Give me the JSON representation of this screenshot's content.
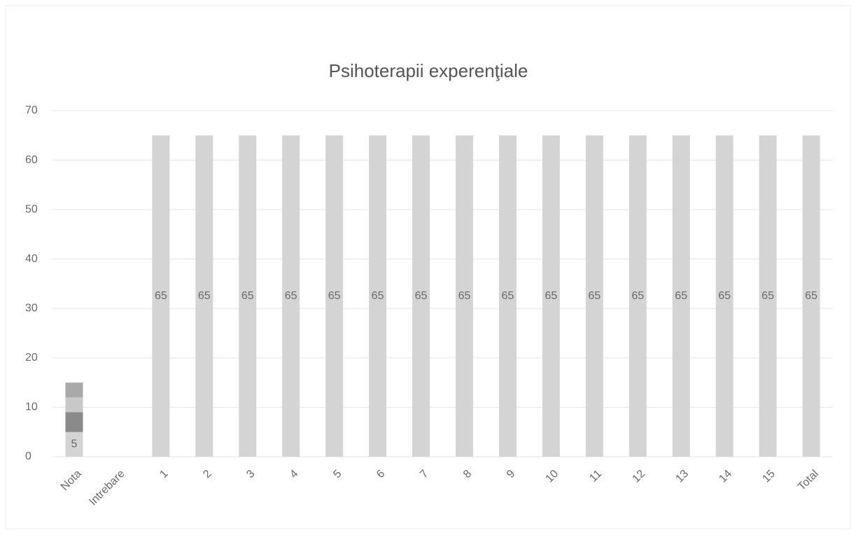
{
  "chart_data": {
    "type": "stacked_bar",
    "title": "Psihoterapii experenţiale",
    "categories": [
      "Nota",
      "Intrebare",
      "1",
      "2",
      "3",
      "4",
      "5",
      "6",
      "7",
      "8",
      "9",
      "10",
      "11",
      "12",
      "13",
      "14",
      "15",
      "Total"
    ],
    "series": [
      {
        "color": "#d4d4d4",
        "show_labels": true,
        "values": [
          5,
          null,
          65,
          65,
          65,
          65,
          65,
          65,
          65,
          65,
          65,
          65,
          65,
          65,
          65,
          65,
          65,
          65
        ]
      },
      {
        "color": "#8a8a8a",
        "values": [
          4,
          null,
          null,
          null,
          null,
          null,
          null,
          null,
          null,
          null,
          null,
          null,
          null,
          null,
          null,
          null,
          null,
          null
        ]
      },
      {
        "color": "#c8c8c8",
        "values": [
          3,
          null,
          null,
          null,
          null,
          null,
          null,
          null,
          null,
          null,
          null,
          null,
          null,
          null,
          null,
          null,
          null,
          null
        ]
      },
      {
        "color": "#a9a9a9",
        "values": [
          3,
          null,
          null,
          null,
          null,
          null,
          null,
          null,
          null,
          null,
          null,
          null,
          null,
          null,
          null,
          null,
          null,
          null
        ]
      }
    ],
    "ylim": [
      0,
      70
    ],
    "yticks": [
      0,
      10,
      20,
      30,
      40,
      50,
      60,
      70
    ],
    "grid": true
  }
}
